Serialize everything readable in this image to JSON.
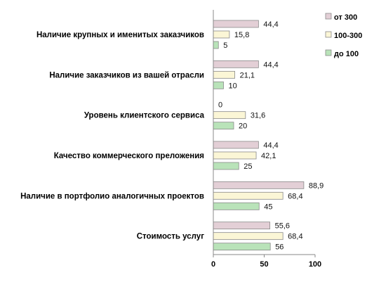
{
  "chart_data": {
    "type": "bar",
    "orientation": "horizontal",
    "title": "",
    "xlabel": "",
    "ylabel": "",
    "xlim": [
      0,
      100
    ],
    "xticks": [
      0,
      50,
      100
    ],
    "grid": false,
    "legend_position": "top-right",
    "categories": [
      "Наличие крупных и именитых заказчиков",
      "Наличие заказчиков из вашей отрасли",
      "Уровень клиентского сервиса",
      "Качество коммерческого преложения",
      "Наличие в портфолио аналогичных проектов",
      "Стоимость  услуг"
    ],
    "series": [
      {
        "name": "от 300",
        "color": "#e3cfd6",
        "values": [
          44.4,
          44.4,
          0,
          44.4,
          88.9,
          55.6
        ],
        "labels": [
          "44,4",
          "44,4",
          "0",
          "44,4",
          "88,9",
          "55,6"
        ]
      },
      {
        "name": "100-300",
        "color": "#fbf6d6",
        "values": [
          15.8,
          21.1,
          31.6,
          42.1,
          68.4,
          68.4
        ],
        "labels": [
          "15,8",
          "21,1",
          "31,6",
          "42,1",
          "68,4",
          "68,4"
        ]
      },
      {
        "name": "до 100",
        "color": "#b9e3b9",
        "values": [
          5,
          10,
          20,
          25,
          45,
          56
        ],
        "labels": [
          "5",
          "10",
          "20",
          "25",
          "45",
          "56"
        ]
      }
    ]
  }
}
